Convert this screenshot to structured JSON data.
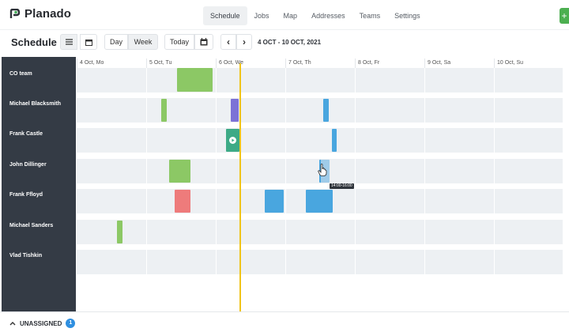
{
  "brand": {
    "name": "Planado"
  },
  "nav": {
    "items": [
      {
        "label": "Schedule",
        "active": true
      },
      {
        "label": "Jobs"
      },
      {
        "label": "Map"
      },
      {
        "label": "Addresses"
      },
      {
        "label": "Teams"
      },
      {
        "label": "Settings"
      }
    ],
    "add_label": "+"
  },
  "toolbar": {
    "title": "Schedule",
    "day_label": "Day",
    "week_label": "Week",
    "today_label": "Today",
    "prev_label": "‹",
    "next_label": "›",
    "date_range": "4 OCT - 10 OCT, 2021"
  },
  "days": [
    "4 Oct, Mo",
    "5 Oct, Tu",
    "6 Oct, We",
    "7 Oct, Th",
    "8 Oct, Fr",
    "9 Oct, Sa",
    "10 Oct, Su"
  ],
  "teams": [
    "CO team",
    "Michael Blacksmith",
    "Frank Castle",
    "John Dillinger",
    "Frank Ffloyd",
    "Michael Sanders",
    "Vlad Tishkin"
  ],
  "tooltip": "14:00-16:00",
  "bottom": {
    "unassigned_label": "UNASSIGNED",
    "unassigned_count": "1"
  },
  "colors": {
    "green": "#8cc865",
    "purple": "#7c72d6",
    "blue": "#49a6df",
    "teal": "#3daa86",
    "red": "#ee7b7b",
    "light_blue": "#9fcbe9",
    "now": "#f0c419"
  }
}
